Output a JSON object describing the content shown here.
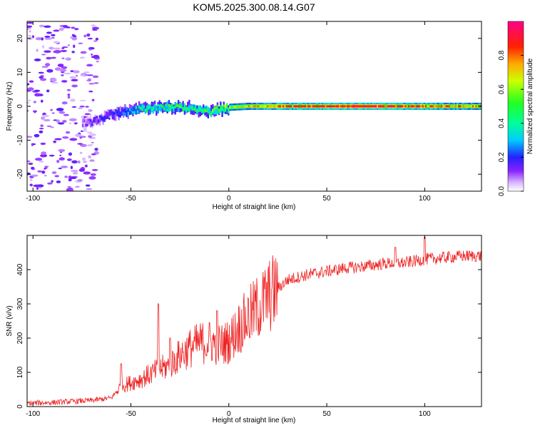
{
  "title": "KOM5.2025.300.08.14.G07",
  "colors": {
    "snr_line": "#ee2222",
    "axis": "#000000",
    "background": "#ffffff"
  },
  "chart_data": [
    {
      "type": "heatmap",
      "name": "spectrogram",
      "xlabel": "Height of straight line (km)",
      "ylabel": "Frequency (Hz)",
      "xlim": [
        -103,
        129
      ],
      "ylim": [
        -25,
        25
      ],
      "xticks": [
        -100,
        -50,
        0,
        50,
        100
      ],
      "yticks": [
        -20,
        -10,
        0,
        10,
        20
      ],
      "ridge": {
        "description": "frequency centre of main energy ridge vs height",
        "x": [
          -75,
          -70,
          -65,
          -60,
          -55,
          -50,
          -45,
          -40,
          -35,
          -30,
          -25,
          -20,
          -15,
          -10,
          -5,
          0,
          10,
          20,
          30,
          40,
          50,
          60,
          70,
          80,
          90,
          100,
          110,
          120,
          129
        ],
        "y": [
          -5,
          -4.5,
          -3.5,
          -2.5,
          -1.8,
          -1.2,
          -0.8,
          -0.6,
          -0.5,
          -0.4,
          -0.3,
          -0.6,
          -1.0,
          -1.5,
          -0.8,
          -0.3,
          0,
          0,
          0,
          0,
          0,
          0,
          0,
          0,
          0,
          0,
          0,
          0,
          0
        ],
        "amplitude": [
          0.1,
          0.15,
          0.2,
          0.2,
          0.25,
          0.3,
          0.4,
          0.45,
          0.45,
          0.5,
          0.5,
          0.45,
          0.45,
          0.5,
          0.55,
          0.6,
          0.7,
          0.8,
          0.85,
          0.9,
          0.92,
          0.95,
          0.95,
          0.9,
          0.88,
          0.85,
          0.8,
          0.75,
          0.75
        ]
      },
      "noise_region": [
        -103,
        -75
      ],
      "colorbar": {
        "label": "Normalized spectral amplitude",
        "ticks": [
          "0.0",
          "0.2",
          "0.4",
          "0.6",
          "0.8"
        ],
        "range": [
          0,
          1
        ]
      }
    },
    {
      "type": "line",
      "name": "snr",
      "xlabel": "Height of straight line (km)",
      "ylabel": "SNR (v/v)",
      "xlim": [
        -103,
        129
      ],
      "ylim": [
        0,
        500
      ],
      "xticks": [
        -100,
        -50,
        0,
        50,
        100
      ],
      "yticks": [
        0,
        100,
        200,
        300,
        400
      ],
      "trend": {
        "x": [
          -103,
          -90,
          -80,
          -70,
          -60,
          -55,
          -50,
          -45,
          -40,
          -35,
          -30,
          -25,
          -20,
          -15,
          -10,
          -5,
          0,
          5,
          10,
          15,
          20,
          25,
          30,
          40,
          50,
          60,
          70,
          80,
          90,
          100,
          110,
          120,
          129
        ],
        "y": [
          10,
          12,
          15,
          18,
          25,
          60,
          70,
          80,
          95,
          110,
          120,
          150,
          170,
          185,
          190,
          180,
          190,
          230,
          260,
          290,
          320,
          345,
          370,
          385,
          395,
          405,
          410,
          418,
          420,
          430,
          435,
          440,
          440
        ]
      },
      "spikes": [
        {
          "x": -55,
          "y": 125
        },
        {
          "x": -36,
          "y": 300
        },
        {
          "x": -30,
          "y": 200
        },
        {
          "x": -6,
          "y": 280
        },
        {
          "x": 85,
          "y": 465
        },
        {
          "x": 100,
          "y": 495
        }
      ]
    }
  ]
}
